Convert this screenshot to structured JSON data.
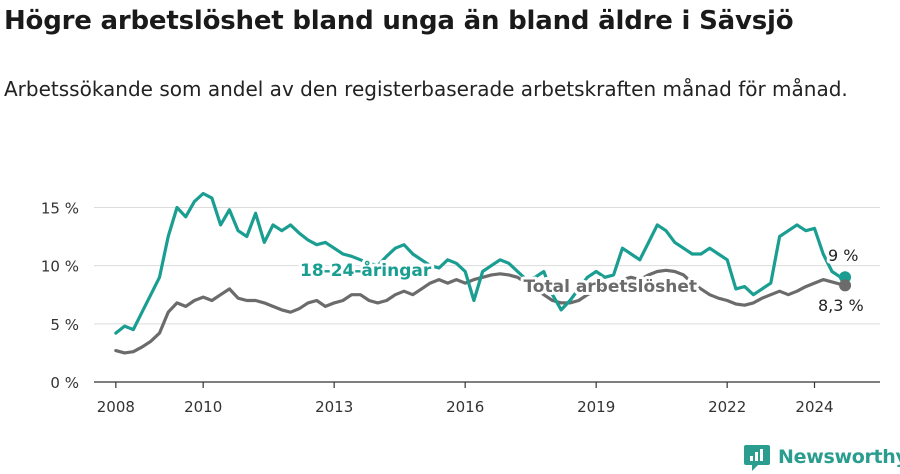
{
  "title": "Högre arbetslöshet bland unga än bland äldre i Sävsjö",
  "subtitle": "Arbetssökande som andel av den registerbaserade arbetskraften månad för månad.",
  "brand": "Newsworthy",
  "colors": {
    "youth": "#1a9e92",
    "total": "#6b6b6b"
  },
  "chart_data": {
    "type": "line",
    "ylim": [
      0,
      16.5
    ],
    "xlim": [
      2007.5,
      2025.5
    ],
    "y_ticks": [
      {
        "value": 0,
        "label": "0 %"
      },
      {
        "value": 5,
        "label": "5 %"
      },
      {
        "value": 10,
        "label": "10 %"
      },
      {
        "value": 15,
        "label": "15 %"
      }
    ],
    "x_ticks": [
      {
        "value": 2008,
        "label": "2008"
      },
      {
        "value": 2010,
        "label": "2010"
      },
      {
        "value": 2013,
        "label": "2013"
      },
      {
        "value": 2016,
        "label": "2016"
      },
      {
        "value": 2019,
        "label": "2019"
      },
      {
        "value": 2022,
        "label": "2022"
      },
      {
        "value": 2024,
        "label": "2024"
      }
    ],
    "grid": true,
    "series": [
      {
        "name": "18-24-åringar",
        "color": "#1a9e92",
        "end_label": "9 %",
        "x": [
          2008.0,
          2008.2,
          2008.4,
          2008.6,
          2008.8,
          2009.0,
          2009.2,
          2009.4,
          2009.6,
          2009.8,
          2010.0,
          2010.2,
          2010.4,
          2010.6,
          2010.8,
          2011.0,
          2011.2,
          2011.4,
          2011.6,
          2011.8,
          2012.0,
          2012.2,
          2012.4,
          2012.6,
          2012.8,
          2013.0,
          2013.2,
          2013.4,
          2013.6,
          2013.8,
          2014.0,
          2014.2,
          2014.4,
          2014.6,
          2014.8,
          2015.0,
          2015.2,
          2015.4,
          2015.6,
          2015.8,
          2016.0,
          2016.2,
          2016.4,
          2016.6,
          2016.8,
          2017.0,
          2017.2,
          2017.4,
          2017.6,
          2017.8,
          2018.0,
          2018.2,
          2018.4,
          2018.6,
          2018.8,
          2019.0,
          2019.2,
          2019.4,
          2019.6,
          2019.8,
          2020.0,
          2020.2,
          2020.4,
          2020.6,
          2020.8,
          2021.0,
          2021.2,
          2021.4,
          2021.6,
          2021.8,
          2022.0,
          2022.2,
          2022.4,
          2022.6,
          2022.8,
          2023.0,
          2023.2,
          2023.4,
          2023.6,
          2023.8,
          2024.0,
          2024.2,
          2024.4,
          2024.6,
          2024.7
        ],
        "y": [
          4.2,
          4.8,
          4.5,
          6.0,
          7.5,
          9.0,
          12.5,
          15.0,
          14.2,
          15.5,
          16.2,
          15.8,
          13.5,
          14.8,
          13.0,
          12.5,
          14.5,
          12.0,
          13.5,
          13.0,
          13.5,
          12.8,
          12.2,
          11.8,
          12.0,
          11.5,
          11.0,
          10.8,
          10.5,
          10.2,
          10.0,
          10.8,
          11.5,
          11.8,
          11.0,
          10.5,
          10.0,
          9.8,
          10.5,
          10.2,
          9.5,
          7.0,
          9.5,
          10.0,
          10.5,
          10.2,
          9.5,
          8.8,
          9.0,
          9.5,
          7.5,
          6.2,
          7.0,
          8.0,
          9.0,
          9.5,
          9.0,
          9.2,
          11.5,
          11.0,
          10.5,
          12.0,
          13.5,
          13.0,
          12.0,
          11.5,
          11.0,
          11.0,
          11.5,
          11.0,
          10.5,
          8.0,
          8.2,
          7.5,
          8.0,
          8.5,
          12.5,
          13.0,
          13.5,
          13.0,
          13.2,
          11.0,
          9.5,
          9.0,
          9.0
        ]
      },
      {
        "name": "Total arbetslöshet",
        "color": "#6b6b6b",
        "end_label": "8,3 %",
        "x": [
          2008.0,
          2008.2,
          2008.4,
          2008.6,
          2008.8,
          2009.0,
          2009.2,
          2009.4,
          2009.6,
          2009.8,
          2010.0,
          2010.2,
          2010.4,
          2010.6,
          2010.8,
          2011.0,
          2011.2,
          2011.4,
          2011.6,
          2011.8,
          2012.0,
          2012.2,
          2012.4,
          2012.6,
          2012.8,
          2013.0,
          2013.2,
          2013.4,
          2013.6,
          2013.8,
          2014.0,
          2014.2,
          2014.4,
          2014.6,
          2014.8,
          2015.0,
          2015.2,
          2015.4,
          2015.6,
          2015.8,
          2016.0,
          2016.2,
          2016.4,
          2016.6,
          2016.8,
          2017.0,
          2017.2,
          2017.4,
          2017.6,
          2017.8,
          2018.0,
          2018.2,
          2018.4,
          2018.6,
          2018.8,
          2019.0,
          2019.2,
          2019.4,
          2019.6,
          2019.8,
          2020.0,
          2020.2,
          2020.4,
          2020.6,
          2020.8,
          2021.0,
          2021.2,
          2021.4,
          2021.6,
          2021.8,
          2022.0,
          2022.2,
          2022.4,
          2022.6,
          2022.8,
          2023.0,
          2023.2,
          2023.4,
          2023.6,
          2023.8,
          2024.0,
          2024.2,
          2024.4,
          2024.6,
          2024.7
        ],
        "y": [
          2.7,
          2.5,
          2.6,
          3.0,
          3.5,
          4.2,
          6.0,
          6.8,
          6.5,
          7.0,
          7.3,
          7.0,
          7.5,
          8.0,
          7.2,
          7.0,
          7.0,
          6.8,
          6.5,
          6.2,
          6.0,
          6.3,
          6.8,
          7.0,
          6.5,
          6.8,
          7.0,
          7.5,
          7.5,
          7.0,
          6.8,
          7.0,
          7.5,
          7.8,
          7.5,
          8.0,
          8.5,
          8.8,
          8.5,
          8.8,
          8.5,
          8.8,
          9.0,
          9.2,
          9.3,
          9.2,
          9.0,
          8.5,
          8.0,
          7.5,
          7.0,
          6.8,
          6.8,
          7.0,
          7.5,
          7.8,
          8.2,
          8.5,
          8.8,
          9.0,
          8.8,
          9.2,
          9.5,
          9.6,
          9.5,
          9.2,
          8.5,
          8.0,
          7.5,
          7.2,
          7.0,
          6.7,
          6.6,
          6.8,
          7.2,
          7.5,
          7.8,
          7.5,
          7.8,
          8.2,
          8.5,
          8.8,
          8.6,
          8.4,
          8.3
        ]
      }
    ],
    "annotations": [
      {
        "series": 0,
        "label": "18-24-åringar"
      },
      {
        "series": 1,
        "label": "Total arbetslöshet"
      }
    ]
  }
}
